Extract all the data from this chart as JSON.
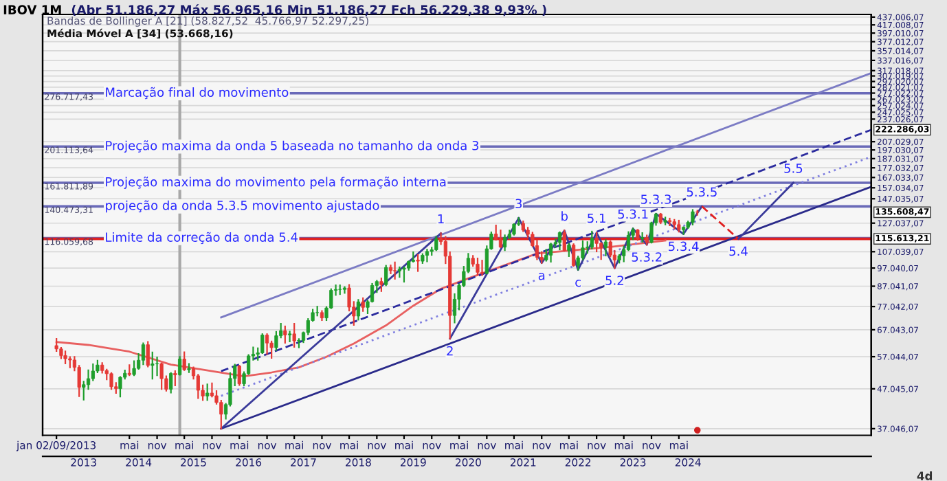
{
  "chart_data": {
    "type": "candlestick",
    "title": "IBOV 1M",
    "annotations": [
      "(Abr 51.186,27 Máx 56.965,16 Min 51.186,27 Fch 56.229,38 9,93% )",
      "Bandas de Bollinger A [21] (58.827,52  45.766,97 52.297,25)",
      "Média Móvel A [34] (53.668,16)",
      "4d",
      {
        "text": "276.717,43",
        "x": "2012-10",
        "y": 276717.43
      },
      {
        "text": "201.113,64",
        "x": "2012-10",
        "y": 201113.64
      },
      {
        "text": "161.811,89",
        "x": "2012-10",
        "y": 161811.89
      },
      {
        "text": "140.473,31",
        "x": "2012-10",
        "y": 140473.31
      },
      {
        "text": "116.059,68",
        "x": "2012-10",
        "y": 116059.68
      },
      {
        "text": "222.286,03",
        "x": "2027-11",
        "y": 222286.03
      },
      {
        "text": "135.608,47",
        "x": "2027-11",
        "y": 135608.47
      },
      {
        "text": "115.613,21",
        "x": "2027-11",
        "y": 115613.21
      },
      {
        "text": "1",
        "x": "2020-01",
        "y": 119500
      },
      {
        "text": "2",
        "x": "2020-03",
        "y": 63570
      },
      {
        "text": "3",
        "x": "2021-06",
        "y": 131000
      },
      {
        "text": "a",
        "x": "2021-11",
        "y": 100000
      },
      {
        "text": "b",
        "x": "2022-04",
        "y": 121500
      },
      {
        "text": "c",
        "x": "2022-07",
        "y": 96000
      },
      {
        "text": "5.1",
        "x": "2022-11",
        "y": 120000
      },
      {
        "text": "5.2",
        "x": "2023-03",
        "y": 97000
      },
      {
        "text": "5.3.1",
        "x": "2023-07",
        "y": 123000
      },
      {
        "text": "5.3.2",
        "x": "2023-10",
        "y": 111600
      },
      {
        "text": "5.3.3",
        "x": "2023-12",
        "y": 134400
      },
      {
        "text": "5.3.4",
        "x": "2024-06",
        "y": 119000
      },
      {
        "text": "5.3.5",
        "x": "2024-10",
        "y": 140473.31
      },
      {
        "text": "5.4",
        "x": "2025-06",
        "y": 115613.21
      },
      {
        "text": "5.5",
        "x": "2026-06",
        "y": 161811.89
      }
    ],
    "x": [
      "2013-01",
      "2013-02",
      "2013-03",
      "2013-04",
      "2013-05",
      "2013-06",
      "2013-07",
      "2013-08",
      "2013-09",
      "2013-10",
      "2013-11",
      "2013-12",
      "2014-01",
      "2014-02",
      "2014-03",
      "2014-04",
      "2014-05",
      "2014-06",
      "2014-07",
      "2014-08",
      "2014-09",
      "2014-10",
      "2014-11",
      "2014-12",
      "2015-01",
      "2015-02",
      "2015-03",
      "2015-04",
      "2015-05",
      "2015-06",
      "2015-07",
      "2015-08",
      "2015-09",
      "2015-10",
      "2015-11",
      "2015-12",
      "2016-01",
      "2016-02",
      "2016-03",
      "2016-04",
      "2016-05",
      "2016-06",
      "2016-07",
      "2016-08",
      "2016-09",
      "2016-10",
      "2016-11",
      "2016-12",
      "2017-01",
      "2017-02",
      "2017-03",
      "2017-04",
      "2017-05",
      "2017-06",
      "2017-07",
      "2017-08",
      "2017-09",
      "2017-10",
      "2017-11",
      "2017-12",
      "2018-01",
      "2018-02",
      "2018-03",
      "2018-04",
      "2018-05",
      "2018-06",
      "2018-07",
      "2018-08",
      "2018-09",
      "2018-10",
      "2018-11",
      "2018-12",
      "2019-01",
      "2019-02",
      "2019-03",
      "2019-04",
      "2019-05",
      "2019-06",
      "2019-07",
      "2019-08",
      "2019-09",
      "2019-10",
      "2019-11",
      "2019-12",
      "2020-01",
      "2020-02",
      "2020-03",
      "2020-04",
      "2020-05",
      "2020-06",
      "2020-07",
      "2020-08",
      "2020-09",
      "2020-10",
      "2020-11",
      "2020-12",
      "2021-01",
      "2021-02",
      "2021-03",
      "2021-04",
      "2021-05",
      "2021-06",
      "2021-07",
      "2021-08",
      "2021-09",
      "2021-10",
      "2021-11",
      "2021-12",
      "2022-01",
      "2022-02",
      "2022-03",
      "2022-04",
      "2022-05",
      "2022-06",
      "2022-07",
      "2022-08",
      "2022-09",
      "2022-10",
      "2022-11",
      "2022-12",
      "2023-01",
      "2023-02",
      "2023-03",
      "2023-04",
      "2023-05",
      "2023-06",
      "2023-07",
      "2023-08",
      "2023-09",
      "2023-10",
      "2023-11",
      "2023-12",
      "2024-01",
      "2024-02",
      "2024-03",
      "2024-04",
      "2024-05",
      "2024-06",
      "2024-07",
      "2024-08",
      "2024-09"
    ],
    "ohlc": [
      [
        60952,
        63473,
        59000,
        59761
      ],
      [
        59761,
        60200,
        56500,
        57424
      ],
      [
        57424,
        58900,
        54800,
        56352
      ],
      [
        56352,
        56900,
        53500,
        55910
      ],
      [
        55910,
        57000,
        52500,
        53506
      ],
      [
        53506,
        54000,
        45000,
        47457
      ],
      [
        47457,
        49100,
        44100,
        48234
      ],
      [
        48234,
        52600,
        47000,
        50008
      ],
      [
        50008,
        54500,
        49500,
        52338
      ],
      [
        52338,
        55700,
        51900,
        54256
      ],
      [
        54256,
        54900,
        51800,
        52482
      ],
      [
        52482,
        52800,
        49800,
        51507
      ],
      [
        51507,
        51700,
        47000,
        47639
      ],
      [
        47639,
        48700,
        45900,
        47094
      ],
      [
        47094,
        50500,
        44900,
        50415
      ],
      [
        50415,
        52500,
        50000,
        51627
      ],
      [
        51627,
        54200,
        51000,
        51239
      ],
      [
        51239,
        55500,
        51000,
        53168
      ],
      [
        53168,
        58000,
        53000,
        55829
      ],
      [
        55829,
        61800,
        54500,
        61288
      ],
      [
        61288,
        62300,
        53800,
        54116
      ],
      [
        54116,
        58500,
        50000,
        54629
      ],
      [
        54629,
        56800,
        51000,
        54724
      ],
      [
        54724,
        54800,
        47000,
        50007
      ],
      [
        50007,
        50700,
        46500,
        46908
      ],
      [
        46908,
        51700,
        46000,
        51583
      ],
      [
        51583,
        52300,
        48000,
        51150
      ],
      [
        51186.27,
        56965.16,
        51186.27,
        56229.38
      ],
      [
        56229,
        58600,
        52600,
        52760
      ],
      [
        52760,
        54600,
        52000,
        53081
      ],
      [
        53081,
        53500,
        50000,
        50865
      ],
      [
        50865,
        51200,
        44500,
        46626
      ],
      [
        46626,
        48000,
        44000,
        45059
      ],
      [
        45059,
        48300,
        44000,
        45869
      ],
      [
        45869,
        48600,
        44900,
        45120
      ],
      [
        45120,
        46400,
        43000,
        43350
      ],
      [
        43350,
        43800,
        37046.07,
        40406
      ],
      [
        40406,
        43000,
        39300,
        42794
      ],
      [
        42794,
        51700,
        42500,
        50055
      ],
      [
        50055,
        54400,
        48000,
        53911
      ],
      [
        53911,
        54000,
        48100,
        48471
      ],
      [
        48471,
        52000,
        48000,
        51527
      ],
      [
        51527,
        57600,
        51400,
        57308
      ],
      [
        57308,
        60300,
        56000,
        57901
      ],
      [
        57901,
        60000,
        56000,
        58367
      ],
      [
        58367,
        65300,
        58300,
        64925
      ],
      [
        64925,
        65300,
        58000,
        61906
      ],
      [
        61906,
        62500,
        56600,
        60227
      ],
      [
        60227,
        66200,
        59300,
        64671
      ],
      [
        64671,
        69500,
        64000,
        66662
      ],
      [
        66662,
        68400,
        62000,
        64984
      ],
      [
        64984,
        66300,
        62500,
        65403
      ],
      [
        65403,
        69500,
        60500,
        62711
      ],
      [
        62711,
        63400,
        60300,
        62900
      ],
      [
        62900,
        66000,
        62200,
        65920
      ],
      [
        65920,
        71500,
        65200,
        70835
      ],
      [
        70835,
        75600,
        70700,
        74294
      ],
      [
        74294,
        77000,
        73000,
        74308
      ],
      [
        74308,
        75000,
        71000,
        71971
      ],
      [
        71971,
        76800,
        71000,
        76402
      ],
      [
        76402,
        85500,
        76300,
        84913
      ],
      [
        84913,
        87500,
        82600,
        85354
      ],
      [
        85354,
        87500,
        83000,
        85366
      ],
      [
        85366,
        86600,
        83600,
        86115
      ],
      [
        86115,
        87700,
        75200,
        76754
      ],
      [
        76754,
        79200,
        69000,
        72763
      ],
      [
        72763,
        80200,
        71200,
        79220
      ],
      [
        79220,
        81000,
        75000,
        76678
      ],
      [
        76678,
        79800,
        74000,
        79342
      ],
      [
        79342,
        88300,
        79300,
        87424
      ],
      [
        87424,
        89900,
        84000,
        89504
      ],
      [
        89504,
        91200,
        84500,
        87887
      ],
      [
        87887,
        98400,
        87500,
        97394
      ],
      [
        97394,
        98600,
        94000,
        95584
      ],
      [
        95584,
        100400,
        91000,
        95415
      ],
      [
        95415,
        97500,
        92000,
        96353
      ],
      [
        96353,
        97500,
        89400,
        97030
      ],
      [
        97030,
        101000,
        96000,
        100967
      ],
      [
        100967,
        106700,
        100800,
        101812
      ],
      [
        101812,
        105000,
        95300,
        101135
      ],
      [
        101135,
        105500,
        100000,
        104745
      ],
      [
        104745,
        108400,
        101000,
        107220
      ],
      [
        107220,
        109700,
        105000,
        108233
      ],
      [
        108233,
        117200,
        108000,
        115645
      ],
      [
        115645,
        119593,
        112000,
        113761
      ],
      [
        113761,
        117000,
        99900,
        104172
      ],
      [
        104172,
        106700,
        63570,
        73020
      ],
      [
        73020,
        83000,
        70000,
        80506
      ],
      [
        80506,
        88000,
        75700,
        87403
      ],
      [
        87403,
        97800,
        87000,
        95056
      ],
      [
        95056,
        105700,
        94600,
        102912
      ],
      [
        102912,
        104400,
        98300,
        99369
      ],
      [
        99369,
        102800,
        93300,
        94603
      ],
      [
        94603,
        101500,
        93000,
        93952
      ],
      [
        93952,
        110600,
        93900,
        108893
      ],
      [
        108893,
        120200,
        108800,
        119017
      ],
      [
        119017,
        125300,
        115000,
        115068
      ],
      [
        115068,
        121600,
        110000,
        110035
      ],
      [
        110035,
        118100,
        108000,
        116634
      ],
      [
        116634,
        121500,
        116000,
        118894
      ],
      [
        118894,
        126300,
        118500,
        126216
      ],
      [
        126216,
        131000,
        125500,
        126802
      ],
      [
        126802,
        128400,
        121000,
        121801
      ],
      [
        121801,
        123600,
        116600,
        118781
      ],
      [
        118781,
        120000,
        110500,
        110979
      ],
      [
        110979,
        114400,
        102300,
        103501
      ],
      [
        103501,
        106800,
        100075,
        101915
      ],
      [
        101915,
        108300,
        101400,
        104822
      ],
      [
        104822,
        112400,
        100800,
        112144
      ],
      [
        112144,
        115200,
        110300,
        113142
      ],
      [
        113142,
        120300,
        108500,
        119999
      ],
      [
        119999,
        121600,
        107700,
        107876
      ],
      [
        107876,
        112300,
        104200,
        111351
      ],
      [
        111351,
        112000,
        98300,
        98542
      ],
      [
        98542,
        104000,
        96100,
        103165
      ],
      [
        103165,
        114000,
        102200,
        109523
      ],
      [
        109523,
        113400,
        106300,
        110037
      ],
      [
        110037,
        120800,
        109000,
        116037
      ],
      [
        116037,
        120000,
        107200,
        112486
      ],
      [
        112486,
        112800,
        102400,
        109735
      ],
      [
        109735,
        114800,
        104600,
        113532
      ],
      [
        113532,
        114000,
        104000,
        104932
      ],
      [
        104932,
        107500,
        97000,
        101882
      ],
      [
        101882,
        105000,
        100200,
        104432
      ],
      [
        104432,
        110400,
        101000,
        108335
      ],
      [
        108335,
        120400,
        108000,
        118087
      ],
      [
        118087,
        123000,
        115300,
        121943
      ],
      [
        121943,
        122000,
        114800,
        115742
      ],
      [
        115742,
        119700,
        113600,
        116565
      ],
      [
        116565,
        118000,
        111600,
        113144
      ],
      [
        113144,
        127500,
        113000,
        127331
      ],
      [
        127331,
        134400,
        125700,
        134185
      ],
      [
        134185,
        134400,
        126900,
        127752
      ],
      [
        127752,
        131400,
        126000,
        129020
      ],
      [
        129020,
        130600,
        125400,
        128106
      ],
      [
        128106,
        129600,
        123000,
        125924
      ],
      [
        125924,
        129000,
        120700,
        122098
      ],
      [
        122098,
        124000,
        119000,
        123907
      ],
      [
        123907,
        128300,
        123400,
        127652
      ],
      [
        127652,
        137500,
        125900,
        136004
      ],
      [
        136004,
        136900,
        133500,
        135608.47
      ]
    ],
    "colors": [
      "#e53935",
      "#e53935",
      "#e53935",
      "#e53935",
      "#e53935",
      "#e53935",
      "#1f9e2c",
      "#1f9e2c",
      "#1f9e2c",
      "#1f9e2c",
      "#e53935",
      "#e53935",
      "#e53935",
      "#e53935",
      "#1f9e2c",
      "#1f9e2c",
      "#e53935",
      "#1f9e2c",
      "#1f9e2c",
      "#1f9e2c",
      "#e53935",
      "#1f9e2c",
      "#1f9e2c",
      "#e53935",
      "#e53935",
      "#1f9e2c",
      "#e53935",
      "#1f9e2c",
      "#e53935",
      "#1f9e2c",
      "#e53935",
      "#e53935",
      "#e53935",
      "#1f9e2c",
      "#e53935",
      "#e53935",
      "#e53935",
      "#1f9e2c",
      "#1f9e2c",
      "#1f9e2c",
      "#e53935",
      "#1f9e2c",
      "#1f9e2c",
      "#1f9e2c",
      "#1f9e2c",
      "#1f9e2c",
      "#e53935",
      "#e53935",
      "#1f9e2c",
      "#1f9e2c",
      "#e53935",
      "#1f9e2c",
      "#e53935",
      "#1f9e2c",
      "#1f9e2c",
      "#1f9e2c",
      "#1f9e2c",
      "#1f9e2c",
      "#e53935",
      "#1f9e2c",
      "#1f9e2c",
      "#1f9e2c",
      "#1f9e2c",
      "#1f9e2c",
      "#e53935",
      "#e53935",
      "#1f9e2c",
      "#e53935",
      "#1f9e2c",
      "#1f9e2c",
      "#1f9e2c",
      "#e53935",
      "#1f9e2c",
      "#e53935",
      "#e53935",
      "#1f9e2c",
      "#1f9e2c",
      "#1f9e2c",
      "#1f9e2c",
      "#e53935",
      "#1f9e2c",
      "#1f9e2c",
      "#1f9e2c",
      "#1f9e2c",
      "#e53935",
      "#e53935",
      "#e53935",
      "#1f9e2c",
      "#1f9e2c",
      "#1f9e2c",
      "#1f9e2c",
      "#e53935",
      "#e53935",
      "#e53935",
      "#1f9e2c",
      "#1f9e2c",
      "#e53935",
      "#e53935",
      "#1f9e2c",
      "#1f9e2c",
      "#1f9e2c",
      "#1f9e2c",
      "#e53935",
      "#e53935",
      "#e53935",
      "#e53935",
      "#e53935",
      "#1f9e2c",
      "#1f9e2c",
      "#1f9e2c",
      "#1f9e2c",
      "#e53935",
      "#1f9e2c",
      "#e53935",
      "#1f9e2c",
      "#1f9e2c",
      "#1f9e2c",
      "#1f9e2c",
      "#e53935",
      "#e53935",
      "#1f9e2c",
      "#e53935",
      "#e53935",
      "#1f9e2c",
      "#1f9e2c",
      "#1f9e2c",
      "#1f9e2c",
      "#e53935",
      "#1f9e2c",
      "#e53935",
      "#1f9e2c",
      "#1f9e2c",
      "#e53935",
      "#1f9e2c",
      "#e53935",
      "#e53935",
      "#e53935",
      "#1f9e2c",
      "#1f9e2c",
      "#1f9e2c",
      "#e53935"
    ],
    "series": [
      {
        "type": "line",
        "color": "#e86060",
        "line_style": "solid",
        "x": [
          "2013-01",
          "2013-08",
          "2014-05",
          "2015-02",
          "2015-11",
          "2016-06",
          "2016-12",
          "2017-06",
          "2017-12",
          "2018-06",
          "2019-01",
          "2019-07",
          "2020-01",
          "2020-07",
          "2021-10",
          "2023-02",
          "2024-02"
        ],
        "values": [
          62300,
          61200,
          58800,
          54400,
          52300,
          50700,
          51900,
          53500,
          57000,
          61700,
          68800,
          77400,
          85700,
          91200,
          105900,
          110100,
          114500
        ]
      },
      {
        "type": "line",
        "color": "#7b7bc4",
        "line_style": "solid",
        "x": [
          "2016-01",
          "2027-11"
        ],
        "values": [
          72200,
          312300
        ]
      },
      {
        "type": "line",
        "color": "#2b2b9e",
        "line_style": "dashed",
        "x": [
          "2016-01",
          "2027-11"
        ],
        "values": [
          52300,
          222286.03
        ]
      },
      {
        "type": "line",
        "color": "#8080e0",
        "line_style": "dotted",
        "x": [
          "2016-01",
          "2027-11"
        ],
        "values": [
          45100,
          189100
        ]
      },
      {
        "type": "line",
        "color": "#2a2a8a",
        "line_style": "solid",
        "x": [
          "2016-01",
          "2027-11"
        ],
        "values": [
          37046.07,
          157900
        ]
      },
      {
        "type": "line",
        "color": "#3a3a9a",
        "line_style": "solid",
        "x": [
          "2016-01",
          "2020-01"
        ],
        "values": [
          37046.07,
          119500
        ]
      },
      {
        "type": "line",
        "color": "#3a3a9a",
        "line_style": "solid",
        "x": [
          "2020-03",
          "2021-06"
        ],
        "values": [
          63570,
          131000
        ]
      },
      {
        "type": "line",
        "color": "#3a3a9a",
        "line_style": "solid",
        "x": [
          "2021-06",
          "2021-11",
          "2022-04",
          "2022-07",
          "2022-11",
          "2023-03",
          "2023-07",
          "2023-10",
          "2023-12",
          "2024-06",
          "2024-10"
        ],
        "values": [
          131000,
          100000,
          121500,
          96000,
          120000,
          97000,
          123000,
          111600,
          134400,
          119000,
          140473.31
        ]
      },
      {
        "type": "line",
        "color": "#e02020",
        "line_style": "dashed",
        "x": [
          "2024-10",
          "2025-06"
        ],
        "values": [
          140473.31,
          115613.21
        ]
      },
      {
        "type": "line",
        "color": "#3a3a9a",
        "line_style": "solid",
        "x": [
          "2025-06",
          "2026-06"
        ],
        "values": [
          115613.21,
          161811.89
        ]
      },
      {
        "type": "scatter",
        "color": "#d02020",
        "marker": "circle",
        "x": [
          "2024-09"
        ],
        "values": [
          36700
        ]
      }
    ],
    "ref_lines": [
      {
        "axis": "y",
        "value": 276717.43,
        "label": "Marcação final do movimento",
        "color": "#6a6ab8"
      },
      {
        "axis": "y",
        "value": 201113.64,
        "label": "Projeção maxima da onda 5 baseada no tamanho da onda 3",
        "color": "#6a6ab8"
      },
      {
        "axis": "y",
        "value": 161811.89,
        "label": "Projeção maxima do movimento pela formação interna",
        "color": "#6a6ab8"
      },
      {
        "axis": "y",
        "value": 140473.31,
        "label": "projeção da onda 5.3.5 movimento ajustado",
        "color": "#6a6ab8"
      },
      {
        "axis": "y",
        "value": 116059.68,
        "label": "Limite da correção da onda 5.4",
        "color": "#6a6ab8"
      },
      {
        "axis": "y",
        "value": 115613.21,
        "color": "#e02020"
      },
      {
        "axis": "x",
        "value": "2015-04",
        "color": "#a8a8a8"
      }
    ],
    "log": true,
    "ylim": [
      35600,
      444000
    ],
    "yticks": [
      {
        "value": 37046.07,
        "label": "37.046,07"
      },
      {
        "value": 47045.07,
        "label": "47.045,07"
      },
      {
        "value": 57044.07,
        "label": "57.044,07"
      },
      {
        "value": 67043.07,
        "label": "67.043,07"
      },
      {
        "value": 77042.07,
        "label": "77.042,07"
      },
      {
        "value": 87041.07,
        "label": "87.041,07"
      },
      {
        "value": 97040.07,
        "label": "97.040,07"
      },
      {
        "value": 107039.07,
        "label": "107.039,07"
      },
      {
        "value": 127037.07,
        "label": "127.037,07"
      },
      {
        "value": 147035.07,
        "label": "147.035,07"
      },
      {
        "value": 157034.07,
        "label": "157.034,07"
      },
      {
        "value": 167033.07,
        "label": "167.033,07"
      },
      {
        "value": 177032.07,
        "label": "177.032,07"
      },
      {
        "value": 187031.07,
        "label": "187.031,07"
      },
      {
        "value": 197030.07,
        "label": "197.030,07"
      },
      {
        "value": 207029.07,
        "label": "207.029,07"
      },
      {
        "value": 237026.07,
        "label": "237.026,07"
      },
      {
        "value": 247025.07,
        "label": "247.025,07"
      },
      {
        "value": 257024.07,
        "label": "257.024,07"
      },
      {
        "value": 267023.07,
        "label": "267.023,07"
      },
      {
        "value": 277022.07,
        "label": "277.022,07"
      },
      {
        "value": 287021.07,
        "label": "287.021,07"
      },
      {
        "value": 297020.07,
        "label": "297.020,07"
      },
      {
        "value": 307019.07,
        "label": "307.019,07"
      },
      {
        "value": 317018.07,
        "label": "317.018,07"
      },
      {
        "value": 337016.07,
        "label": "337.016,07"
      },
      {
        "value": 357014.07,
        "label": "357.014,07"
      },
      {
        "value": 377012.07,
        "label": "377.012,07"
      },
      {
        "value": 397010.07,
        "label": "397.010,07"
      },
      {
        "value": 417008.07,
        "label": "417.008,07"
      },
      {
        "value": 437006.07,
        "label": "437.006,07"
      }
    ],
    "xlim": [
      "2012-10",
      "2027-11"
    ],
    "xticks": [
      {
        "value": "2013-01",
        "label": "jan 02/09/2013"
      },
      {
        "value": "2014-05",
        "label": "mai"
      },
      {
        "value": "2014-11",
        "label": "nov"
      },
      {
        "value": "2015-05",
        "label": "mai"
      },
      {
        "value": "2015-11",
        "label": "nov"
      },
      {
        "value": "2016-05",
        "label": "mai"
      },
      {
        "value": "2016-11",
        "label": "nov"
      },
      {
        "value": "2017-05",
        "label": "mai"
      },
      {
        "value": "2017-11",
        "label": "nov"
      },
      {
        "value": "2018-05",
        "label": "mai"
      },
      {
        "value": "2018-11",
        "label": "nov"
      },
      {
        "value": "2019-05",
        "label": "mai"
      },
      {
        "value": "2019-11",
        "label": "nov"
      },
      {
        "value": "2020-05",
        "label": "mai"
      },
      {
        "value": "2020-11",
        "label": "nov"
      },
      {
        "value": "2021-05",
        "label": "mai"
      },
      {
        "value": "2021-11",
        "label": "nov"
      },
      {
        "value": "2022-05",
        "label": "mai"
      },
      {
        "value": "2022-11",
        "label": "nov"
      },
      {
        "value": "2023-05",
        "label": "mai"
      },
      {
        "value": "2023-11",
        "label": "nov"
      },
      {
        "value": "2024-05",
        "label": "mai"
      }
    ],
    "x2lim": [
      "2012-10",
      "2027-11"
    ],
    "x2ticks": [
      {
        "value": "2013-07",
        "label": "2013"
      },
      {
        "value": "2014-07",
        "label": "2014"
      },
      {
        "value": "2015-07",
        "label": "2015"
      },
      {
        "value": "2016-07",
        "label": "2016"
      },
      {
        "value": "2017-07",
        "label": "2017"
      },
      {
        "value": "2018-07",
        "label": "2018"
      },
      {
        "value": "2019-07",
        "label": "2019"
      },
      {
        "value": "2020-07",
        "label": "2020"
      },
      {
        "value": "2021-07",
        "label": "2021"
      },
      {
        "value": "2022-07",
        "label": "2022"
      },
      {
        "value": "2023-07",
        "label": "2023"
      },
      {
        "value": "2024-07",
        "label": "2024"
      }
    ],
    "grid": "y",
    "legend": false
  }
}
